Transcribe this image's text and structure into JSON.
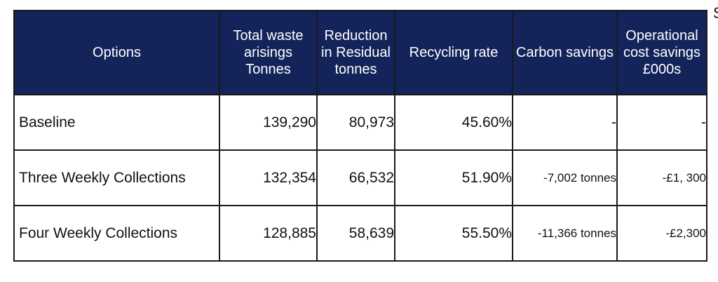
{
  "edge_text": "S",
  "table": {
    "headers": [
      "Options",
      "Total waste arisings Tonnes",
      "Reduction in Residual tonnes",
      "Recycling rate",
      "Carbon savings",
      "Operational cost savings £000s"
    ],
    "rows": [
      {
        "option": "Baseline",
        "total_waste": "139,290",
        "reduction": "80,973",
        "recycling_rate": "45.60%",
        "carbon_savings": "-",
        "cost_savings": "-"
      },
      {
        "option": "Three Weekly Collections",
        "total_waste": "132,354",
        "reduction": "66,532",
        "recycling_rate": "51.90%",
        "carbon_savings": "-7,002 tonnes",
        "cost_savings": "-£1, 300"
      },
      {
        "option": "Four Weekly Collections",
        "total_waste": "128,885",
        "reduction": "58,639",
        "recycling_rate": "55.50%",
        "carbon_savings": "-11,366 tonnes",
        "cost_savings": "-£2,300"
      }
    ]
  },
  "colors": {
    "header_bg": "#14245a",
    "header_text": "#ffffff",
    "border": "#1a1a1a"
  }
}
